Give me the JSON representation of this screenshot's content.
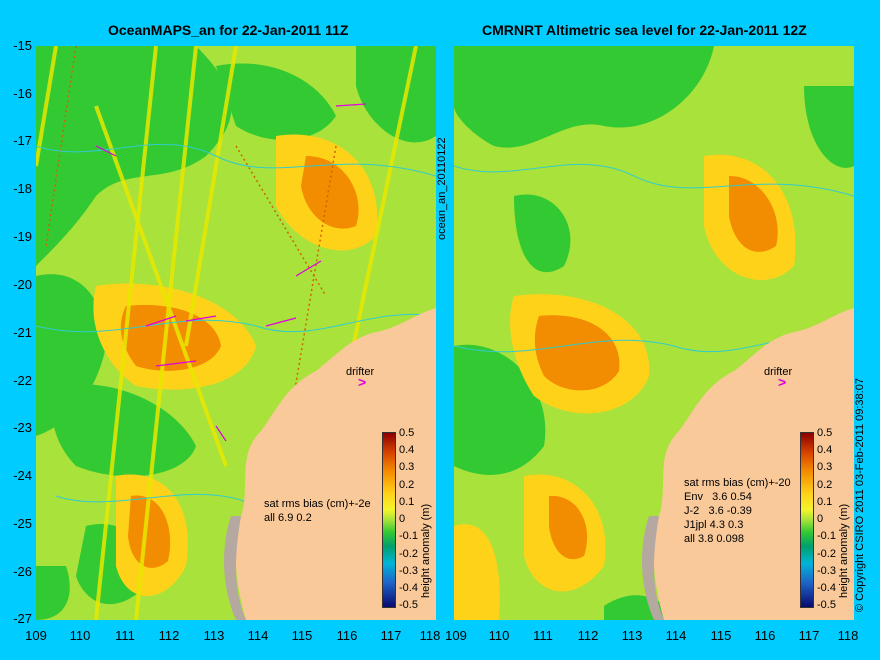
{
  "left_panel": {
    "title": "OceanMAPS_an for 22-Jan-2011 11Z",
    "stats_lines": [
      "sat rms bias (cm)+-2e",
      "all 6.9 0.2"
    ],
    "drifter_label": "drifter",
    "side_label": "ocean_an_20110122"
  },
  "right_panel": {
    "title": "CMRNRT Altimetric sea level  for 22-Jan-2011 12Z",
    "stats_lines": [
      "sat rms bias (cm)+-20",
      "Env   3.6 0.54",
      "J-2   3.6 -0.39",
      "J1jpl 4.3 0.3",
      "all 3.8 0.098"
    ],
    "drifter_label": "drifter",
    "copyright": "© Copyright CSIRO 2011  03-Feb-2011 09:38:07"
  },
  "latitude_labels": [
    "-15",
    "-16",
    "-17",
    "-18",
    "-19",
    "-20",
    "-21",
    "-22",
    "-23",
    "-24",
    "-25",
    "-26",
    "-27"
  ],
  "left_longitude_labels": [
    "109",
    "110",
    "111",
    "112",
    "113",
    "114",
    "115",
    "116",
    "117",
    "118"
  ],
  "right_longitude_labels": [
    "109",
    "110",
    "111",
    "112",
    "113",
    "114",
    "115",
    "116",
    "117",
    "118"
  ],
  "colorbar": {
    "label": "height anomaly (m)",
    "ticks": [
      "0.5",
      "0.4",
      "0.3",
      "0.2",
      "0.1",
      "0",
      "-0.1",
      "-0.2",
      "-0.3",
      "-0.4",
      "-0.5"
    ],
    "range": [
      -0.5,
      0.5
    ]
  },
  "colors": {
    "background": "#00ccff",
    "land": "#f9c99a",
    "shelf": "#b4a8a0",
    "vectors": "#e000e0",
    "contours": "#33cccc"
  }
}
